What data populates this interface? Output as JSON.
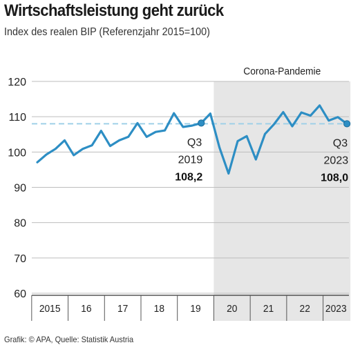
{
  "chart_data": {
    "type": "line",
    "title": "Wirtschaftsleistung geht zurück",
    "subtitle": "Index des realen BIP (Referenzjahr 2015=100)",
    "source": "Grafik: © APA, Quelle: Statistik Austria",
    "ylim": [
      60,
      120
    ],
    "yticks": [
      60,
      70,
      80,
      90,
      100,
      110,
      120
    ],
    "year_labels": [
      "2015",
      "16",
      "17",
      "18",
      "19",
      "20",
      "21",
      "22",
      "2023"
    ],
    "shaded_region": {
      "label": "Corona-Pandemie",
      "from": "2020-Q1",
      "to": "2022-Q4"
    },
    "reference_line": {
      "value": 108,
      "style": "dashed"
    },
    "series": [
      {
        "color": "#2d8ec4",
        "points": [
          {
            "q": "2015-Q1",
            "value": 97.1
          },
          {
            "q": "2015-Q2",
            "value": 99.3
          },
          {
            "q": "2015-Q3",
            "value": 100.9
          },
          {
            "q": "2015-Q4",
            "value": 103.3
          },
          {
            "q": "2016-Q1",
            "value": 99.1
          },
          {
            "q": "2016-Q2",
            "value": 100.9
          },
          {
            "q": "2016-Q3",
            "value": 101.9
          },
          {
            "q": "2016-Q4",
            "value": 106.0
          },
          {
            "q": "2017-Q1",
            "value": 101.7
          },
          {
            "q": "2017-Q2",
            "value": 103.3
          },
          {
            "q": "2017-Q3",
            "value": 104.3
          },
          {
            "q": "2017-Q4",
            "value": 108.2
          },
          {
            "q": "2018-Q1",
            "value": 104.3
          },
          {
            "q": "2018-Q2",
            "value": 105.7
          },
          {
            "q": "2018-Q3",
            "value": 106.1
          },
          {
            "q": "2018-Q4",
            "value": 111.0
          },
          {
            "q": "2019-Q1",
            "value": 107.1
          },
          {
            "q": "2019-Q2",
            "value": 107.5
          },
          {
            "q": "2019-Q3",
            "value": 108.2
          },
          {
            "q": "2019-Q4",
            "value": 110.9
          },
          {
            "q": "2020-Q1",
            "value": 101.3
          },
          {
            "q": "2020-Q2",
            "value": 93.9
          },
          {
            "q": "2020-Q3",
            "value": 103.1
          },
          {
            "q": "2020-Q4",
            "value": 104.5
          },
          {
            "q": "2021-Q1",
            "value": 97.9
          },
          {
            "q": "2021-Q2",
            "value": 105.1
          },
          {
            "q": "2021-Q3",
            "value": 107.9
          },
          {
            "q": "2021-Q4",
            "value": 111.3
          },
          {
            "q": "2022-Q1",
            "value": 107.3
          },
          {
            "q": "2022-Q2",
            "value": 111.2
          },
          {
            "q": "2022-Q3",
            "value": 110.3
          },
          {
            "q": "2022-Q4",
            "value": 113.2
          },
          {
            "q": "2023-Q1",
            "value": 108.9
          },
          {
            "q": "2023-Q2",
            "value": 109.9
          },
          {
            "q": "2023-Q3",
            "value": 108.0
          }
        ]
      }
    ],
    "annotations": [
      {
        "q": "2019-Q3",
        "quarter": "Q3",
        "year": "2019",
        "value_label": "108,2"
      },
      {
        "q": "2023-Q3",
        "quarter": "Q3",
        "year": "2023",
        "value_label": "108,0"
      }
    ]
  }
}
